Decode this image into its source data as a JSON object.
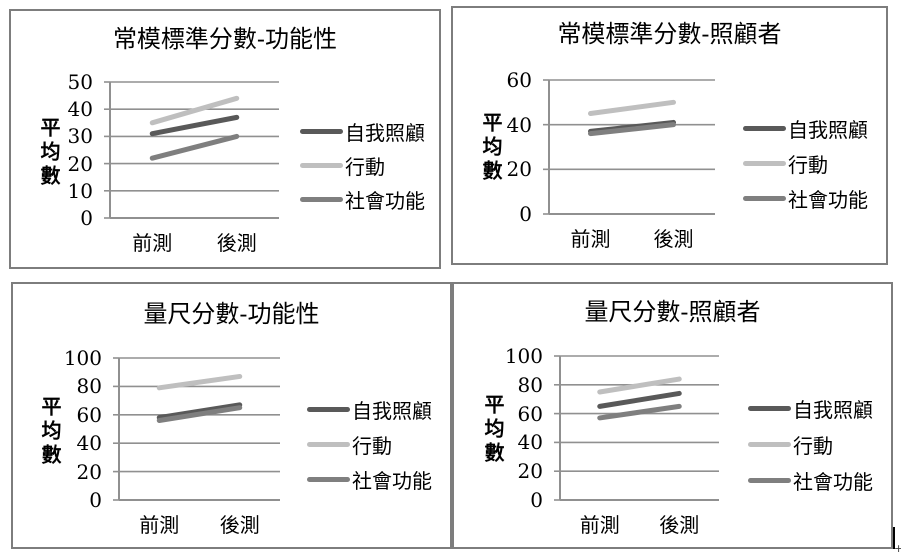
{
  "page": {
    "background": "#ffffff",
    "corner_mark": "+"
  },
  "colors": {
    "series_self_care": "#595959",
    "series_mobility": "#bfbfbf",
    "series_social": "#7f7f7f",
    "gridline": "#909090",
    "panel_border": "#7d7d7d"
  },
  "chart_data": [
    {
      "type": "line",
      "title": "常模標準分數-功能性",
      "ylabel": "平均數",
      "categories": [
        "前測",
        "後測"
      ],
      "ylim": [
        0,
        50
      ],
      "yticks": [
        0,
        10,
        20,
        30,
        40,
        50
      ],
      "grid": true,
      "legend_position": "right",
      "series": [
        {
          "name": "自我照顧",
          "color": "#595959",
          "values": [
            31,
            37
          ]
        },
        {
          "name": "行動",
          "color": "#bfbfbf",
          "values": [
            35,
            44
          ]
        },
        {
          "name": "社會功能",
          "color": "#7f7f7f",
          "values": [
            22,
            30
          ]
        }
      ]
    },
    {
      "type": "line",
      "title": "常模標準分數-照顧者",
      "ylabel": "平均數",
      "categories": [
        "前測",
        "後測"
      ],
      "ylim": [
        0,
        60
      ],
      "yticks": [
        0,
        20,
        40,
        60
      ],
      "grid": true,
      "legend_position": "right",
      "series": [
        {
          "name": "自我照顧",
          "color": "#595959",
          "values": [
            37,
            41
          ]
        },
        {
          "name": "行動",
          "color": "#bfbfbf",
          "values": [
            45,
            50
          ]
        },
        {
          "name": "社會功能",
          "color": "#7f7f7f",
          "values": [
            36,
            40
          ]
        }
      ]
    },
    {
      "type": "line",
      "title": "量尺分數-功能性",
      "ylabel": "平均數",
      "categories": [
        "前測",
        "後測"
      ],
      "ylim": [
        0,
        100
      ],
      "yticks": [
        0,
        20,
        40,
        60,
        80,
        100
      ],
      "grid": true,
      "legend_position": "right",
      "series": [
        {
          "name": "自我照顧",
          "color": "#595959",
          "values": [
            58,
            67
          ]
        },
        {
          "name": "行動",
          "color": "#bfbfbf",
          "values": [
            79,
            87
          ]
        },
        {
          "name": "社會功能",
          "color": "#7f7f7f",
          "values": [
            56,
            65
          ]
        }
      ]
    },
    {
      "type": "line",
      "title": "量尺分數-照顧者",
      "ylabel": "平均數",
      "categories": [
        "前測",
        "後測"
      ],
      "ylim": [
        0,
        100
      ],
      "yticks": [
        0,
        20,
        40,
        60,
        80,
        100
      ],
      "grid": true,
      "legend_position": "right",
      "series": [
        {
          "name": "自我照顧",
          "color": "#595959",
          "values": [
            65,
            74
          ]
        },
        {
          "name": "行動",
          "color": "#bfbfbf",
          "values": [
            75,
            84
          ]
        },
        {
          "name": "社會功能",
          "color": "#7f7f7f",
          "values": [
            57,
            65
          ]
        }
      ]
    }
  ]
}
